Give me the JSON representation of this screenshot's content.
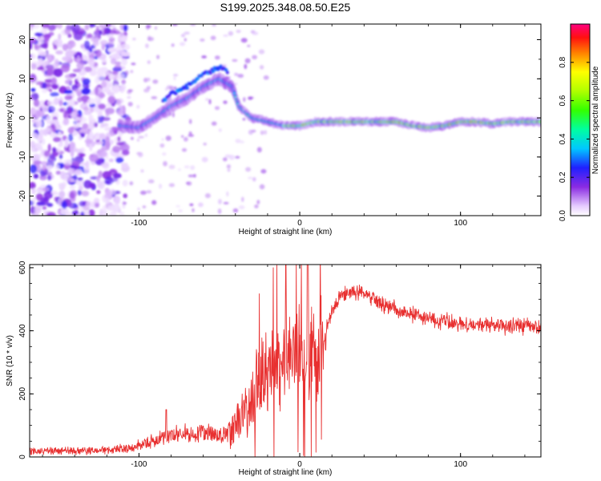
{
  "title": "S199.2025.348.08.50.E25",
  "chart_data": [
    {
      "type": "heatmap",
      "name": "spectrogram",
      "xlabel": "Height of straight line (km)",
      "ylabel": "Frequency (Hz)",
      "xlim": [
        -168,
        150
      ],
      "ylim": [
        -25,
        24
      ],
      "xticks": [
        -100,
        0,
        100
      ],
      "yticks": [
        -20,
        -10,
        0,
        10,
        20
      ],
      "colorbar": {
        "label": "Normalized spectral amplitude",
        "range": [
          0,
          1
        ],
        "ticks": [
          0.0,
          0.2,
          0.4,
          0.6,
          0.8
        ],
        "tick_labels": [
          "0.0",
          "0.2",
          "0.4",
          "0.6",
          "0.8"
        ]
      },
      "signal_track": [
        {
          "x": -112,
          "f": -2
        },
        {
          "x": -100,
          "f": -2.5
        },
        {
          "x": -90,
          "f": 0
        },
        {
          "x": -80,
          "f": 3
        },
        {
          "x": -70,
          "f": 5
        },
        {
          "x": -60,
          "f": 8
        },
        {
          "x": -50,
          "f": 10
        },
        {
          "x": -42,
          "f": 8
        },
        {
          "x": -38,
          "f": 3
        },
        {
          "x": -30,
          "f": 0
        },
        {
          "x": -20,
          "f": -1
        },
        {
          "x": -10,
          "f": -2
        },
        {
          "x": 0,
          "f": -2
        },
        {
          "x": 10,
          "f": -1
        },
        {
          "x": 40,
          "f": -1
        },
        {
          "x": 60,
          "f": -1
        },
        {
          "x": 70,
          "f": -2
        },
        {
          "x": 80,
          "f": -2.5
        },
        {
          "x": 90,
          "f": -2
        },
        {
          "x": 100,
          "f": -1
        },
        {
          "x": 110,
          "f": -1
        },
        {
          "x": 120,
          "f": -1.5
        },
        {
          "x": 130,
          "f": -1
        },
        {
          "x": 150,
          "f": -1
        }
      ],
      "noise_region": [
        -168,
        -108
      ]
    },
    {
      "type": "line",
      "name": "snr",
      "xlabel": "Height of straight line (km)",
      "ylabel": "SNR (10 * v/v)",
      "xlim": [
        -168,
        150
      ],
      "ylim": [
        0,
        610
      ],
      "xticks": [
        -100,
        0,
        100
      ],
      "yticks": [
        0,
        200,
        400,
        600
      ],
      "color": "#e83030",
      "series": [
        {
          "name": "SNR",
          "x": [
            -168,
            -140,
            -120,
            -105,
            -95,
            -85,
            -80,
            -70,
            -60,
            -50,
            -45,
            -40,
            -35,
            -30,
            -25,
            -20,
            -15,
            -10,
            -5,
            0,
            5,
            10,
            15,
            20,
            25,
            30,
            35,
            40,
            45,
            50,
            60,
            70,
            80,
            90,
            100,
            110,
            120,
            130,
            140,
            150
          ],
          "values": [
            18,
            20,
            22,
            30,
            45,
            60,
            70,
            75,
            80,
            70,
            75,
            100,
            130,
            180,
            250,
            280,
            300,
            310,
            330,
            320,
            300,
            320,
            380,
            460,
            510,
            520,
            525,
            520,
            510,
            490,
            470,
            450,
            440,
            430,
            425,
            420,
            418,
            415,
            415,
            410
          ]
        }
      ]
    }
  ]
}
